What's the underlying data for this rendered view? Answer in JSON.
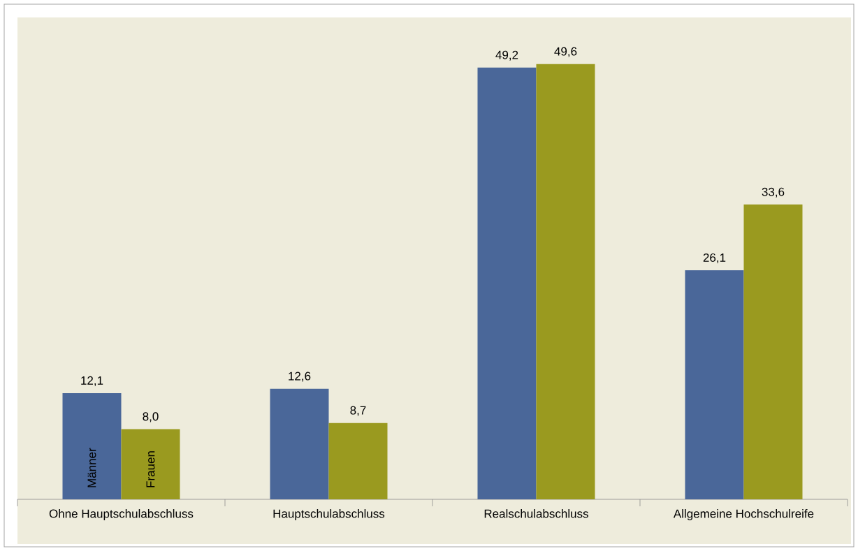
{
  "chart_data": {
    "type": "bar",
    "categories": [
      "Ohne Hauptschulabschluss",
      "Hauptschulabschluss",
      "Realschulabschluss",
      "Allgemeine Hochschulreife"
    ],
    "series": [
      {
        "name": "Männer",
        "color": "#4a6799",
        "values": [
          12.1,
          12.6,
          49.2,
          26.1
        ],
        "value_labels": [
          "12,1",
          "12,6",
          "49,2",
          "26,1"
        ]
      },
      {
        "name": "Frauen",
        "color": "#9a9a1f",
        "values": [
          8.0,
          8.7,
          49.6,
          33.6
        ],
        "value_labels": [
          "8,0",
          "8,7",
          "49,6",
          "33,6"
        ]
      }
    ]
  }
}
